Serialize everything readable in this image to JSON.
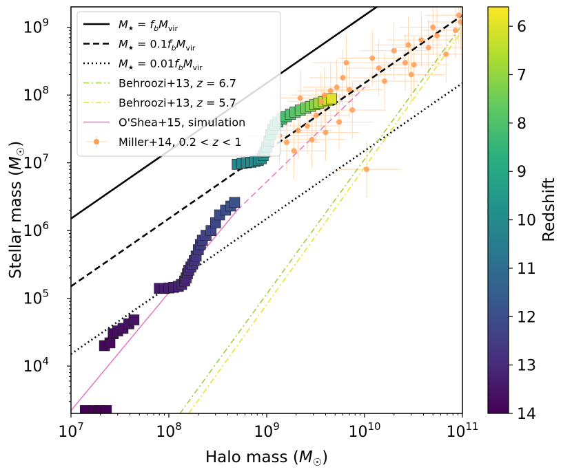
{
  "chart_data": {
    "type": "scatter",
    "xscale": "log",
    "yscale": "log",
    "xlim": [
      10000000.0,
      100000000000.0
    ],
    "ylim": [
      2000,
      2000000000.0
    ],
    "xlabel": "Halo mass (M☉)",
    "ylabel": "Stellar mass (M☉)",
    "xlabel_text": "Halo mass (",
    "xlabel_symbol": "M",
    "xlabel_sub": "☉",
    "xlabel_close": ")",
    "ylabel_text": "Stellar mass (",
    "ylabel_symbol": "M",
    "ylabel_sub": "☉",
    "ylabel_close": ")",
    "x_ticks": [
      {
        "value": 10000000.0,
        "base": "10",
        "exp": "7"
      },
      {
        "value": 100000000.0,
        "base": "10",
        "exp": "8"
      },
      {
        "value": 1000000000.0,
        "base": "10",
        "exp": "9"
      },
      {
        "value": 10000000000.0,
        "base": "10",
        "exp": "10"
      },
      {
        "value": 100000000000.0,
        "base": "10",
        "exp": "11"
      }
    ],
    "y_ticks": [
      {
        "value": 10000.0,
        "base": "10",
        "exp": "4"
      },
      {
        "value": 100000.0,
        "base": "10",
        "exp": "5"
      },
      {
        "value": 1000000.0,
        "base": "10",
        "exp": "6"
      },
      {
        "value": 10000000.0,
        "base": "10",
        "exp": "7"
      },
      {
        "value": 100000000.0,
        "base": "10",
        "exp": "8"
      },
      {
        "value": 1000000000.0,
        "base": "10",
        "exp": "9"
      }
    ],
    "colorbar": {
      "label": "Redshift",
      "range": [
        5.6,
        14
      ],
      "ticks": [
        "6",
        "7",
        "8",
        "9",
        "10",
        "11",
        "12",
        "13",
        "14"
      ],
      "tick_values": [
        6,
        7,
        8,
        9,
        10,
        11,
        12,
        13,
        14
      ],
      "colormap": "viridis (yellow at low z, purple at high z)"
    },
    "lines": [
      {
        "name": "M* = fb Mvir",
        "ratio": 0.15,
        "color": "#000000",
        "style": "solid"
      },
      {
        "name": "M* = 0.1 fb Mvir",
        "ratio": 0.015,
        "color": "#000000",
        "style": "dashed"
      },
      {
        "name": "M* = 0.01 fb Mvir",
        "ratio": 0.0015,
        "color": "#000000",
        "style": "dotted"
      },
      {
        "name": "Behroozi+13, z = 6.7",
        "x": [
          130000000.0,
          100000000000.0
        ],
        "y": [
          2000,
          1100000000.0
        ],
        "color": "#9acd32",
        "style": "dashdot"
      },
      {
        "name": "Behroozi+13, z = 5.7",
        "x": [
          160000000.0,
          100000000000.0
        ],
        "y": [
          2000,
          900000000.0
        ],
        "color": "#e6e61e",
        "style": "dashdot"
      },
      {
        "name": "O'Shea+15, simulation",
        "x": [
          10000000.0,
          500000000.0
        ],
        "y": [
          2200,
          2000000.0
        ],
        "color": "#e377c2",
        "style": "solid"
      },
      {
        "name": "O'Shea+15 extrapolation",
        "x": [
          500000000.0,
          10000000000.0
        ],
        "y": [
          2000000.0,
          130000000.0
        ],
        "color": "#e377c2",
        "style": "dashed"
      }
    ],
    "series": [
      {
        "name": "simulated galaxy (colored by redshift)",
        "marker": "square",
        "points": [
          {
            "x": 14000000.0,
            "y": 2200,
            "z": 14.0
          },
          {
            "x": 17000000.0,
            "y": 2200,
            "z": 14.0
          },
          {
            "x": 20000000.0,
            "y": 2200,
            "z": 14.0
          },
          {
            "x": 23000000.0,
            "y": 2200,
            "z": 13.95
          },
          {
            "x": 22000000.0,
            "y": 20000.0,
            "z": 13.85
          },
          {
            "x": 25000000.0,
            "y": 22000.0,
            "z": 13.8
          },
          {
            "x": 27000000.0,
            "y": 30000.0,
            "z": 13.75
          },
          {
            "x": 30000000.0,
            "y": 33000.0,
            "z": 13.7
          },
          {
            "x": 34000000.0,
            "y": 36000.0,
            "z": 13.65
          },
          {
            "x": 39000000.0,
            "y": 42000.0,
            "z": 13.6
          },
          {
            "x": 44000000.0,
            "y": 48000.0,
            "z": 13.55
          },
          {
            "x": 80000000.0,
            "y": 140000.0,
            "z": 13.4
          },
          {
            "x": 90000000.0,
            "y": 140000.0,
            "z": 13.35
          },
          {
            "x": 100000000.0,
            "y": 142000.0,
            "z": 13.3
          },
          {
            "x": 112000000.0,
            "y": 145000.0,
            "z": 13.25
          },
          {
            "x": 125000000.0,
            "y": 150000.0,
            "z": 13.2
          },
          {
            "x": 135000000.0,
            "y": 160000.0,
            "z": 13.15
          },
          {
            "x": 145000000.0,
            "y": 180000.0,
            "z": 13.1
          },
          {
            "x": 150000000.0,
            "y": 200000.0,
            "z": 13.05
          },
          {
            "x": 155000000.0,
            "y": 230000.0,
            "z": 13.0
          },
          {
            "x": 160000000.0,
            "y": 260000.0,
            "z": 12.95
          },
          {
            "x": 168000000.0,
            "y": 290000.0,
            "z": 12.9
          },
          {
            "x": 175000000.0,
            "y": 320000.0,
            "z": 12.85
          },
          {
            "x": 182000000.0,
            "y": 360000.0,
            "z": 12.8
          },
          {
            "x": 190000000.0,
            "y": 420000.0,
            "z": 12.7
          },
          {
            "x": 200000000.0,
            "y": 520000.0,
            "z": 12.6
          },
          {
            "x": 210000000.0,
            "y": 620000.0,
            "z": 12.5
          },
          {
            "x": 220000000.0,
            "y": 720000.0,
            "z": 12.45
          },
          {
            "x": 240000000.0,
            "y": 850000.0,
            "z": 12.35
          },
          {
            "x": 270000000.0,
            "y": 1000000.0,
            "z": 12.3
          },
          {
            "x": 300000000.0,
            "y": 1300000.0,
            "z": 12.2
          },
          {
            "x": 330000000.0,
            "y": 1700000.0,
            "z": 12.1
          },
          {
            "x": 380000000.0,
            "y": 2000000.0,
            "z": 12.0
          },
          {
            "x": 430000000.0,
            "y": 2300000.0,
            "z": 11.9
          },
          {
            "x": 470000000.0,
            "y": 2600000.0,
            "z": 11.85
          },
          {
            "x": 500000000.0,
            "y": 9500000.0,
            "z": 10.2
          },
          {
            "x": 560000000.0,
            "y": 9800000.0,
            "z": 10.15
          },
          {
            "x": 620000000.0,
            "y": 10000000.0,
            "z": 10.1
          },
          {
            "x": 690000000.0,
            "y": 10200000.0,
            "z": 10.05
          },
          {
            "x": 760000000.0,
            "y": 10500000.0,
            "z": 10.0
          },
          {
            "x": 820000000.0,
            "y": 10800000.0,
            "z": 9.95
          },
          {
            "x": 880000000.0,
            "y": 11500000.0,
            "z": 9.85
          },
          {
            "x": 920000000.0,
            "y": 12800000.0,
            "z": 9.75
          },
          {
            "x": 960000000.0,
            "y": 14500000.0,
            "z": 9.6
          },
          {
            "x": 1000000000.0,
            "y": 17000000.0,
            "z": 9.4
          },
          {
            "x": 1050000000.0,
            "y": 21000000.0,
            "z": 9.2
          },
          {
            "x": 1100000000.0,
            "y": 26000000.0,
            "z": 9.0
          },
          {
            "x": 1150000000.0,
            "y": 31000000.0,
            "z": 8.8
          },
          {
            "x": 1220000000.0,
            "y": 36000000.0,
            "z": 8.6
          },
          {
            "x": 1300000000.0,
            "y": 40000000.0,
            "z": 8.45
          },
          {
            "x": 1420000000.0,
            "y": 44000000.0,
            "z": 8.3
          },
          {
            "x": 1580000000.0,
            "y": 48000000.0,
            "z": 8.15
          },
          {
            "x": 1750000000.0,
            "y": 52000000.0,
            "z": 8.0
          },
          {
            "x": 1950000000.0,
            "y": 56000000.0,
            "z": 7.85
          },
          {
            "x": 2200000000.0,
            "y": 60000000.0,
            "z": 7.7
          },
          {
            "x": 2500000000.0,
            "y": 64000000.0,
            "z": 7.5
          },
          {
            "x": 2800000000.0,
            "y": 68000000.0,
            "z": 7.3
          },
          {
            "x": 3100000000.0,
            "y": 72000000.0,
            "z": 7.1
          },
          {
            "x": 3400000000.0,
            "y": 76000000.0,
            "z": 6.9
          },
          {
            "x": 3800000000.0,
            "y": 80000000.0,
            "z": 6.6
          },
          {
            "x": 4200000000.0,
            "y": 84000000.0,
            "z": 6.3
          },
          {
            "x": 4600000000.0,
            "y": 88000000.0,
            "z": 6.0
          }
        ]
      },
      {
        "name": "Miller+14, 0.2 < z < 1",
        "marker": "circle",
        "color": "#ffa500",
        "points": [
          {
            "x": 1600000000.0,
            "y": 20000000.0
          },
          {
            "x": 1900000000.0,
            "y": 15000000.0
          },
          {
            "x": 2100000000.0,
            "y": 30000000.0
          },
          {
            "x": 2600000000.0,
            "y": 35000000.0
          },
          {
            "x": 2900000000.0,
            "y": 22000000.0
          },
          {
            "x": 3200000000.0,
            "y": 50000000.0
          },
          {
            "x": 3600000000.0,
            "y": 80000000.0
          },
          {
            "x": 3900000000.0,
            "y": 100000000.0
          },
          {
            "x": 4500000000.0,
            "y": 115000000.0
          },
          {
            "x": 5200000000.0,
            "y": 130000000.0
          },
          {
            "x": 6000000000.0,
            "y": 180000000.0
          },
          {
            "x": 7000000000.0,
            "y": 120000000.0
          },
          {
            "x": 7500000000.0,
            "y": 60000000.0
          },
          {
            "x": 5500000000.0,
            "y": 40000000.0
          },
          {
            "x": 4000000000.0,
            "y": 28000000.0
          },
          {
            "x": 6500000000.0,
            "y": 300000000.0
          },
          {
            "x": 10500000000.0,
            "y": 8000000.0
          },
          {
            "x": 12000000000.0,
            "y": 350000000.0
          },
          {
            "x": 14000000000.0,
            "y": 250000000.0
          },
          {
            "x": 16000000000.0,
            "y": 160000000.0
          },
          {
            "x": 20000000000.0,
            "y": 450000000.0
          },
          {
            "x": 26000000000.0,
            "y": 300000000.0
          },
          {
            "x": 28000000000.0,
            "y": 550000000.0
          },
          {
            "x": 32000000000.0,
            "y": 280000000.0
          },
          {
            "x": 38000000000.0,
            "y": 650000000.0
          },
          {
            "x": 45000000000.0,
            "y": 500000000.0
          },
          {
            "x": 55000000000.0,
            "y": 750000000.0
          },
          {
            "x": 68000000000.0,
            "y": 400000000.0
          },
          {
            "x": 85000000000.0,
            "y": 900000000.0
          },
          {
            "x": 92000000000.0,
            "y": 1500000000.0
          },
          {
            "x": 96000000000.0,
            "y": 1200000000.0
          },
          {
            "x": 30000000000.0,
            "y": 200000000.0
          },
          {
            "x": 50000000000.0,
            "y": 1000000000.0
          },
          {
            "x": 2200000000.0,
            "y": 90000000.0
          },
          {
            "x": 1350000000.0,
            "y": 25000000.0
          }
        ]
      }
    ],
    "legend": {
      "placement": "upper-left",
      "entries": [
        {
          "pre": "M",
          "sub1": "★",
          "mid": " = f",
          "sub2": "b",
          "post": "M",
          "sub3": "vir",
          "tail": ""
        },
        {
          "pre": "M",
          "sub1": "★",
          "mid": " = 0.1f",
          "sub2": "b",
          "post": "M",
          "sub3": "vir",
          "tail": ""
        },
        {
          "pre": "M",
          "sub1": "★",
          "mid": " = 0.01f",
          "sub2": "b",
          "post": "M",
          "sub3": "vir",
          "tail": ""
        },
        {
          "pre": "Behroozi+13, ",
          "sub1": "",
          "mid": "z = 6.7",
          "sub2": "",
          "post": "",
          "sub3": "",
          "tail": ""
        },
        {
          "pre": "Behroozi+13, ",
          "sub1": "",
          "mid": "z = 5.7",
          "sub2": "",
          "post": "",
          "sub3": "",
          "tail": ""
        },
        {
          "pre": "O'Shea+15, simulation",
          "sub1": "",
          "mid": "",
          "sub2": "",
          "post": "",
          "sub3": "",
          "tail": ""
        },
        {
          "pre": "Miller+14, 0.2 < ",
          "sub1": "",
          "mid": "z < 1",
          "sub2": "",
          "post": "",
          "sub3": "",
          "tail": ""
        }
      ]
    }
  }
}
